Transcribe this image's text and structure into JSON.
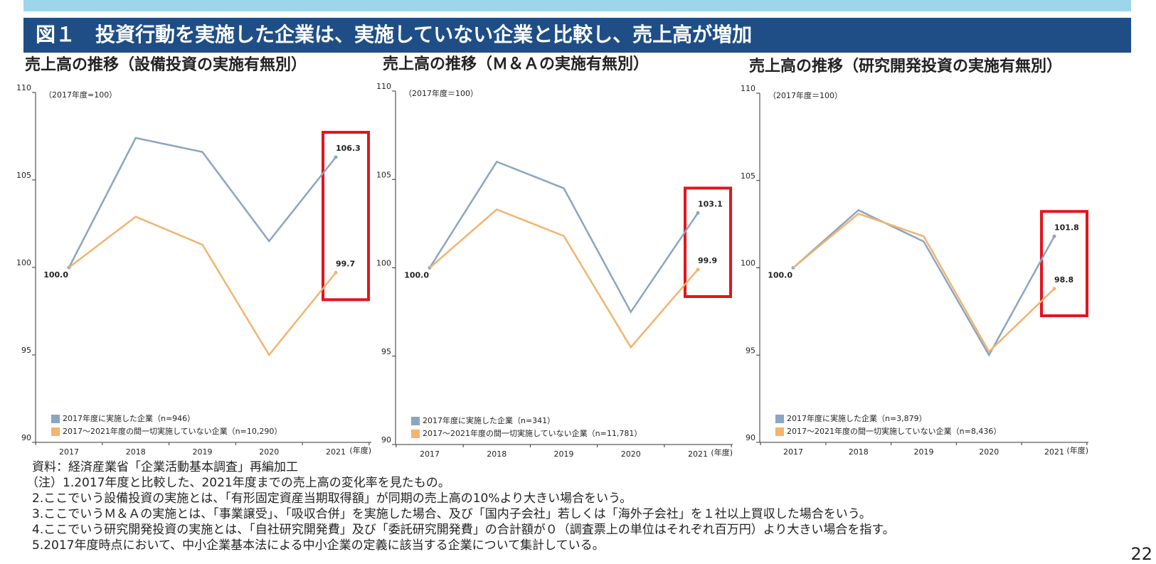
{
  "header": {
    "title": "図１　投資行動を実施した企業は、実施していない企業と比較し、売上高が増加"
  },
  "chart_data": [
    {
      "type": "line",
      "title": "売上高の推移（設備投資の実施有無別）",
      "note": "（2017年度=100）",
      "x_label": "(年度)",
      "categories": [
        "2017",
        "2018",
        "2019",
        "2020",
        "2021"
      ],
      "series": [
        {
          "name": "2017年度に実施した企業（n=946）",
          "color": "#8ba5c2",
          "values": [
            100,
            107.4,
            106.6,
            101.5,
            106.3
          ],
          "value_labels": [
            "100.0",
            null,
            null,
            null,
            "106.3"
          ]
        },
        {
          "name": "2017～2021年度の間一切実施していない企業（n=10,290）",
          "color": "#f2b46f",
          "values": [
            100,
            102.9,
            101.3,
            95.0,
            99.7
          ],
          "value_labels": [
            null,
            null,
            null,
            null,
            "99.7"
          ]
        }
      ],
      "ylim": [
        90,
        110
      ],
      "yticks": [
        90,
        95,
        100,
        105,
        110
      ]
    },
    {
      "type": "line",
      "title": "売上高の推移（Ｍ＆Ａの実施有無別）",
      "note": "（2017年度＝100）",
      "x_label": "(年度)",
      "categories": [
        "2017",
        "2018",
        "2019",
        "2020",
        "2021"
      ],
      "series": [
        {
          "name": "2017年度に実施した企業（n=341）",
          "color": "#8ba5c2",
          "values": [
            100,
            106.0,
            104.5,
            97.5,
            103.1
          ],
          "value_labels": [
            "100.0",
            null,
            null,
            null,
            "103.1"
          ]
        },
        {
          "name": "2017～2021年度の間一切実施していない企業（n=11,781）",
          "color": "#f2b46f",
          "values": [
            100,
            103.3,
            101.8,
            95.5,
            99.9
          ],
          "value_labels": [
            null,
            null,
            null,
            null,
            "99.9"
          ]
        }
      ],
      "ylim": [
        90,
        110
      ],
      "yticks": [
        90,
        95,
        100,
        105,
        110
      ]
    },
    {
      "type": "line",
      "title": "売上高の推移（研究開発投資の実施有無別）",
      "note": "（2017年度＝100）",
      "x_label": "(年度)",
      "categories": [
        "2017",
        "2018",
        "2019",
        "2020",
        "2021"
      ],
      "series": [
        {
          "name": "2017年度に実施した企業（n=3,879）",
          "color": "#8ba5c2",
          "values": [
            100,
            103.3,
            101.5,
            95.0,
            101.8
          ],
          "value_labels": [
            "100.0",
            null,
            null,
            null,
            "101.8"
          ]
        },
        {
          "name": "2017～2021年度の間一切実施していない企業（n=8,436）",
          "color": "#f2b46f",
          "values": [
            100,
            103.1,
            101.8,
            95.2,
            98.8
          ],
          "value_labels": [
            null,
            null,
            null,
            null,
            "98.8"
          ]
        }
      ],
      "ylim": [
        90,
        110
      ],
      "yticks": [
        90,
        95,
        100,
        105,
        110
      ]
    }
  ],
  "notes": [
    "資料：経済産業省「企業活動基本調査」再編加工",
    "（注）1.2017年度と比較した、2021年度までの売上高の変化率を見たもの。",
    "2.ここでいう設備投資の実施とは、「有形固定資産当期取得額」が同期の売上高の10%より大きい場合をいう。",
    "3.ここでいうＭ＆Ａの実施とは、「事業譲受」、「吸収合併」を実施した場合、及び「国内子会社」若しくは「海外子会社」を１社以上買収した場合をいう。",
    "4.ここでいう研究開発投資の実施とは、「自社研究開発費」及び「委託研究開発費」の合計額が０（調査票上の単位はそれぞれ百万円）より大きい場合を指す。",
    "5.2017年度時点において、中小企業基本法による中小企業の定義に該当する企業について集計している。"
  ],
  "page_number": "22"
}
